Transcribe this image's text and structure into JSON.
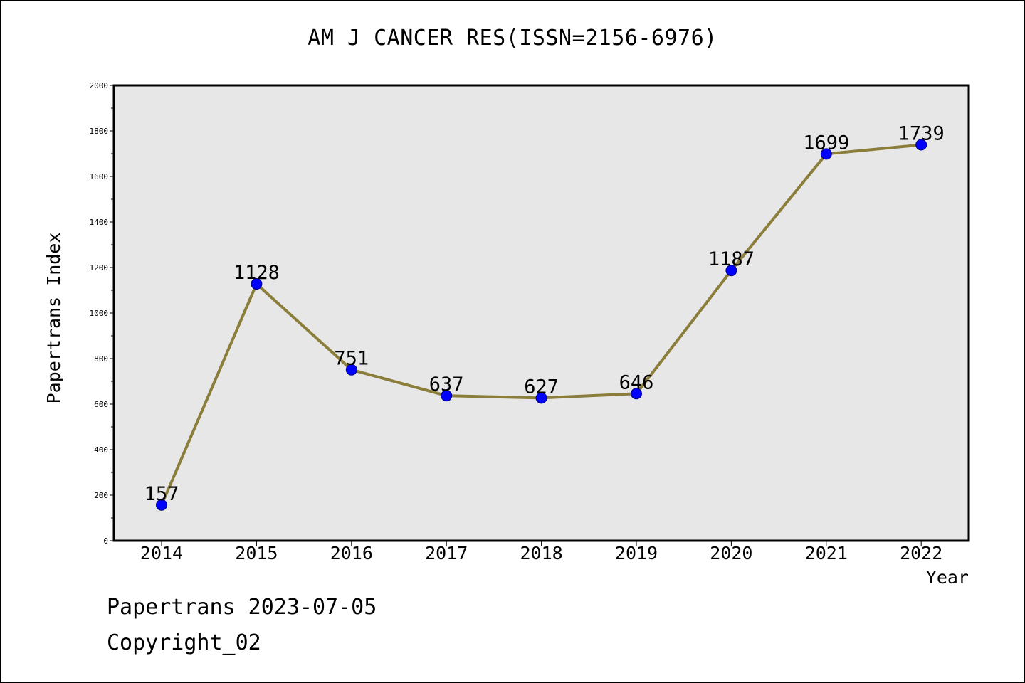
{
  "chart_data": {
    "type": "line",
    "title": "AM J CANCER RES(ISSN=2156-6976)",
    "xlabel": "Year",
    "ylabel": "Papertrans Index",
    "categories": [
      "2014",
      "2015",
      "2016",
      "2017",
      "2018",
      "2019",
      "2020",
      "2021",
      "2022"
    ],
    "series": [
      {
        "values": [
          157,
          1128,
          751,
          637,
          627,
          646,
          1187,
          1699,
          1739
        ]
      }
    ],
    "data_labels": [
      "157",
      "1128",
      "751",
      "637",
      "627",
      "646",
      "1187",
      "1699",
      "1739"
    ],
    "ylim": [
      0,
      2000
    ],
    "yticks": [
      0,
      200,
      400,
      600,
      800,
      1000,
      1200,
      1400,
      1600,
      1800,
      2000
    ],
    "ytick_labels": [
      "0",
      "200",
      "400",
      "600",
      "800",
      "1000",
      "1200",
      "1400",
      "1600",
      "1800",
      "2000"
    ],
    "grid": false,
    "colors": {
      "line": "#8b7d3a",
      "marker": "#0000ff",
      "marker_edge": "#00007a",
      "plot_bg": "#e7e7e7"
    }
  },
  "footer": {
    "line1": "Papertrans 2023-07-05",
    "line2": "Copyright_02"
  }
}
